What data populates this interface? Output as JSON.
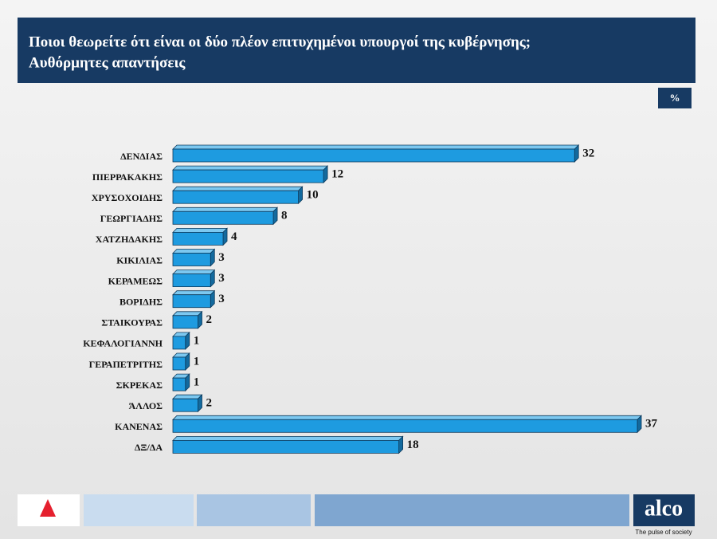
{
  "chart_data": {
    "type": "hbar3d",
    "title": "Ποιοι θεωρείτε ότι είναι οι δύο πλέον επιτυχημένοι υπουργοί της κυβέρνησης;",
    "subtitle": "Αυθόρμητες απαντήσεις",
    "unit_label": "%",
    "categories": [
      "ΔΕΝΔΙΑΣ",
      "ΠΙΕΡΡΑΚΑΚΗΣ",
      "ΧΡΥΣΟΧΟΙΔΗΣ",
      "ΓΕΩΡΓΙΑΔΗΣ",
      "ΧΑΤΖΗΔΑΚΗΣ",
      "ΚΙΚΙΛΙΑΣ",
      "ΚΕΡΑΜΕΩΣ",
      "ΒΟΡΙΔΗΣ",
      "ΣΤΑΙΚΟΥΡΑΣ",
      "ΚΕΦΑΛΟΓΙΑΝΝΗ",
      "ΓΕΡΑΠΕΤΡΙΤΗΣ",
      "ΣΚΡΕΚΑΣ",
      "ΆΛΛΟΣ",
      "ΚΑΝΕΝΑΣ",
      "ΔΞ/ΔΑ"
    ],
    "values": [
      32,
      12,
      10,
      8,
      4,
      3,
      3,
      3,
      2,
      1,
      1,
      1,
      2,
      37,
      18
    ],
    "color": "#1e9be0"
  },
  "footer": {
    "brand": "alco",
    "tagline": "The pulse of society"
  }
}
